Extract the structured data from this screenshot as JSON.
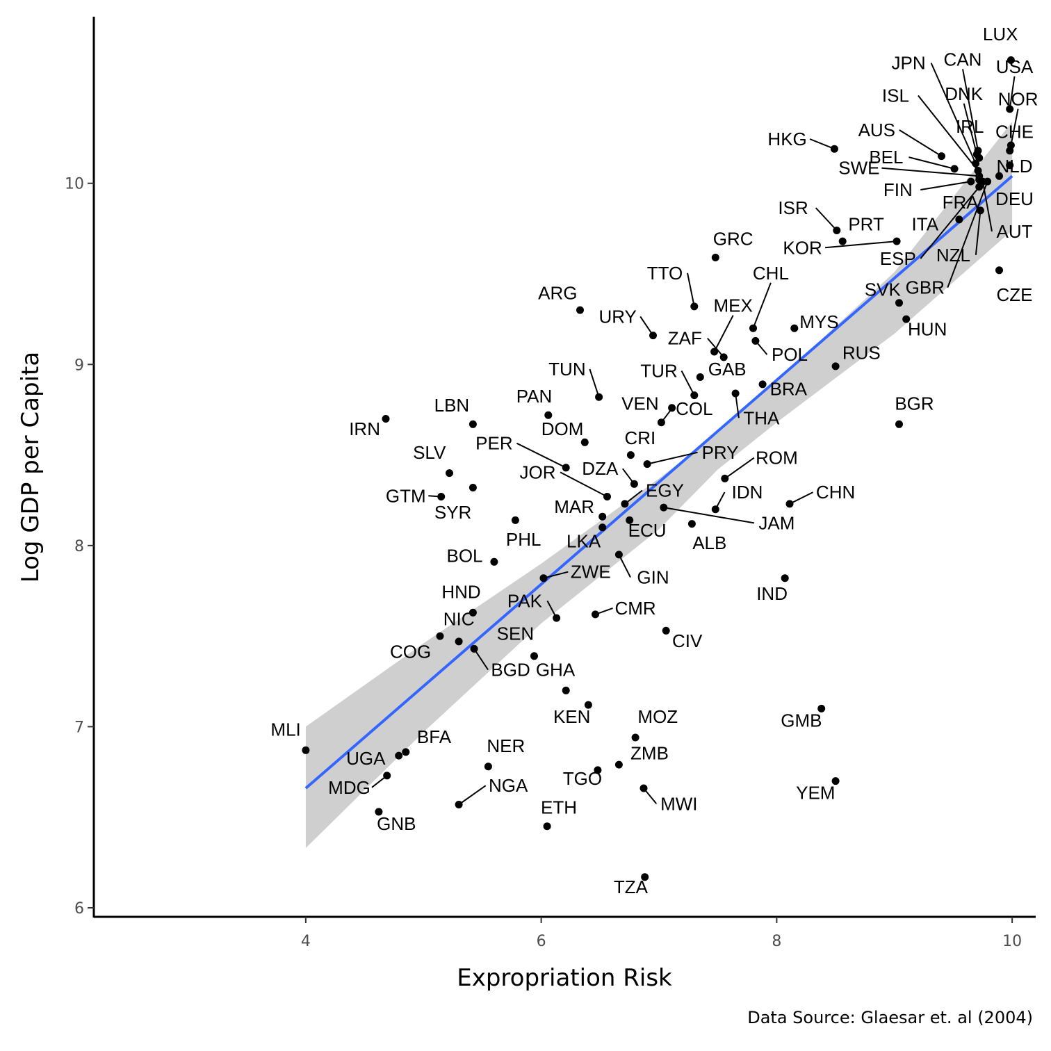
{
  "chart_data": {
    "type": "scatter",
    "xlabel": "Expropriation Risk",
    "ylabel": "Log GDP per Capita",
    "caption": "Data Source: Glaesar et. al (2004)",
    "xlim": [
      2.2,
      10.2
    ],
    "ylim": [
      5.95,
      10.92
    ],
    "xticks": [
      4,
      6,
      8,
      10
    ],
    "yticks": [
      6,
      7,
      8,
      9,
      10
    ],
    "grid": false,
    "colors": {
      "points": "#000000",
      "fit_line": "#3366ff",
      "ribbon": "#cccccc"
    },
    "fit": {
      "method": "linear",
      "x0": 4.0,
      "y0": 6.66,
      "x1": 10.0,
      "y1": 10.04,
      "band": [
        [
          4.0,
          6.33,
          7.0
        ],
        [
          5.0,
          6.97,
          7.46
        ],
        [
          6.0,
          7.57,
          7.9
        ],
        [
          7.0,
          8.09,
          8.37
        ],
        [
          7.5,
          8.42,
          8.62
        ],
        [
          8.0,
          8.68,
          8.91
        ],
        [
          9.0,
          9.17,
          9.51
        ],
        [
          10.0,
          9.74,
          10.34
        ]
      ]
    },
    "points": [
      {
        "code": "LUX",
        "x": 9.99,
        "y": 10.68,
        "lx": 9.9,
        "ly": 10.79
      },
      {
        "code": "USA",
        "x": 9.98,
        "y": 10.41,
        "lx": 10.02,
        "ly": 10.61
      },
      {
        "code": "NOR",
        "x": 9.99,
        "y": 10.21,
        "lx": 10.05,
        "ly": 10.43
      },
      {
        "code": "CHE",
        "x": 9.98,
        "y": 10.18,
        "lx": 10.02,
        "ly": 10.25
      },
      {
        "code": "NLD",
        "x": 9.98,
        "y": 10.1,
        "lx": 10.02,
        "ly": 10.06
      },
      {
        "code": "DEU",
        "x": 9.89,
        "y": 10.04,
        "lx": 10.02,
        "ly": 9.88
      },
      {
        "code": "AUT",
        "x": 9.75,
        "y": 10.01,
        "lx": 10.02,
        "ly": 9.7
      },
      {
        "code": "CAN",
        "x": 9.71,
        "y": 10.18,
        "lx": 9.58,
        "ly": 10.65
      },
      {
        "code": "JPN",
        "x": 9.69,
        "y": 10.11,
        "lx": 9.12,
        "ly": 10.63
      },
      {
        "code": "DNK",
        "x": 9.7,
        "y": 10.16,
        "lx": 9.59,
        "ly": 10.46
      },
      {
        "code": "ISL",
        "x": 9.71,
        "y": 10.07,
        "lx": 9.01,
        "ly": 10.45
      },
      {
        "code": "IRL",
        "x": 9.72,
        "y": 10.14,
        "lx": 9.64,
        "ly": 10.28
      },
      {
        "code": "AUS",
        "x": 9.4,
        "y": 10.15,
        "lx": 8.85,
        "ly": 10.26
      },
      {
        "code": "HKG",
        "x": 8.49,
        "y": 10.19,
        "lx": 8.09,
        "ly": 10.21
      },
      {
        "code": "BEL",
        "x": 9.51,
        "y": 10.08,
        "lx": 8.93,
        "ly": 10.11
      },
      {
        "code": "SWE",
        "x": 9.72,
        "y": 10.04,
        "lx": 8.7,
        "ly": 10.05
      },
      {
        "code": "FIN",
        "x": 9.65,
        "y": 10.01,
        "lx": 9.03,
        "ly": 9.93
      },
      {
        "code": "FRA",
        "x": 9.72,
        "y": 10.02,
        "lx": 9.56,
        "ly": 9.86
      },
      {
        "code": "ITA",
        "x": 9.55,
        "y": 9.8,
        "lx": 9.26,
        "ly": 9.74
      },
      {
        "code": "ESP",
        "x": 9.72,
        "y": 9.98,
        "lx": 9.03,
        "ly": 9.55
      },
      {
        "code": "NZL",
        "x": 9.73,
        "y": 9.85,
        "lx": 9.5,
        "ly": 9.57
      },
      {
        "code": "GBR",
        "x": 9.79,
        "y": 10.01,
        "lx": 9.26,
        "ly": 9.39
      },
      {
        "code": "CZE",
        "x": 9.89,
        "y": 9.52,
        "lx": 10.02,
        "ly": 9.35
      },
      {
        "code": "ISR",
        "x": 8.51,
        "y": 9.74,
        "lx": 8.14,
        "ly": 9.83
      },
      {
        "code": "PRT",
        "x": 8.56,
        "y": 9.68,
        "lx": 8.76,
        "ly": 9.74
      },
      {
        "code": "KOR",
        "x": 9.02,
        "y": 9.68,
        "lx": 8.22,
        "ly": 9.61
      },
      {
        "code": "GRC",
        "x": 7.48,
        "y": 9.59,
        "lx": 7.63,
        "ly": 9.66
      },
      {
        "code": "SVK",
        "x": 9.04,
        "y": 9.34,
        "lx": 8.9,
        "ly": 9.38
      },
      {
        "code": "HUN",
        "x": 9.1,
        "y": 9.25,
        "lx": 9.28,
        "ly": 9.16
      },
      {
        "code": "ARG",
        "x": 6.33,
        "y": 9.3,
        "lx": 6.14,
        "ly": 9.36
      },
      {
        "code": "TTO",
        "x": 7.3,
        "y": 9.32,
        "lx": 7.05,
        "ly": 9.47
      },
      {
        "code": "CHL",
        "x": 7.8,
        "y": 9.2,
        "lx": 7.95,
        "ly": 9.47
      },
      {
        "code": "MEX",
        "x": 7.47,
        "y": 9.07,
        "lx": 7.63,
        "ly": 9.29
      },
      {
        "code": "URY",
        "x": 6.95,
        "y": 9.16,
        "lx": 6.65,
        "ly": 9.23
      },
      {
        "code": "MYS",
        "x": 8.15,
        "y": 9.2,
        "lx": 8.36,
        "ly": 9.2
      },
      {
        "code": "ZAF",
        "x": 7.55,
        "y": 9.04,
        "lx": 7.22,
        "ly": 9.11
      },
      {
        "code": "POL",
        "x": 7.82,
        "y": 9.13,
        "lx": 8.11,
        "ly": 9.02
      },
      {
        "code": "RUS",
        "x": 8.5,
        "y": 8.99,
        "lx": 8.72,
        "ly": 9.03
      },
      {
        "code": "GAB",
        "x": 7.35,
        "y": 8.93,
        "lx": 7.58,
        "ly": 8.94
      },
      {
        "code": "TUR",
        "x": 7.3,
        "y": 8.83,
        "lx": 7.0,
        "ly": 8.93
      },
      {
        "code": "TUN",
        "x": 6.49,
        "y": 8.82,
        "lx": 6.22,
        "ly": 8.94
      },
      {
        "code": "BRA",
        "x": 7.88,
        "y": 8.89,
        "lx": 8.1,
        "ly": 8.83
      },
      {
        "code": "VEN",
        "x": 7.11,
        "y": 8.76,
        "lx": 6.84,
        "ly": 8.75
      },
      {
        "code": "BGR",
        "x": 9.04,
        "y": 8.67,
        "lx": 9.17,
        "ly": 8.75
      },
      {
        "code": "THA",
        "x": 7.65,
        "y": 8.84,
        "lx": 7.87,
        "ly": 8.67
      },
      {
        "code": "PAN",
        "x": 6.06,
        "y": 8.72,
        "lx": 5.94,
        "ly": 8.79
      },
      {
        "code": "LBN",
        "x": 5.42,
        "y": 8.67,
        "lx": 5.24,
        "ly": 8.74
      },
      {
        "code": "IRN",
        "x": 4.68,
        "y": 8.7,
        "lx": 4.5,
        "ly": 8.61
      },
      {
        "code": "COL",
        "x": 7.02,
        "y": 8.68,
        "lx": 7.3,
        "ly": 8.72
      },
      {
        "code": "DOM",
        "x": 6.37,
        "y": 8.57,
        "lx": 6.18,
        "ly": 8.61
      },
      {
        "code": "CRI",
        "x": 6.76,
        "y": 8.5,
        "lx": 6.84,
        "ly": 8.56
      },
      {
        "code": "PER",
        "x": 6.21,
        "y": 8.43,
        "lx": 5.6,
        "ly": 8.53
      },
      {
        "code": "PRY",
        "x": 6.9,
        "y": 8.45,
        "lx": 7.52,
        "ly": 8.48
      },
      {
        "code": "SLV",
        "x": 5.22,
        "y": 8.4,
        "lx": 5.05,
        "ly": 8.48
      },
      {
        "code": "ROM",
        "x": 7.56,
        "y": 8.37,
        "lx": 8.0,
        "ly": 8.45
      },
      {
        "code": "DZA",
        "x": 6.79,
        "y": 8.34,
        "lx": 6.5,
        "ly": 8.39
      },
      {
        "code": "JOR",
        "x": 6.56,
        "y": 8.27,
        "lx": 5.97,
        "ly": 8.37
      },
      {
        "code": "SYR",
        "x": 5.42,
        "y": 8.32,
        "lx": 5.25,
        "ly": 8.15
      },
      {
        "code": "GTM",
        "x": 5.15,
        "y": 8.27,
        "lx": 4.85,
        "ly": 8.24
      },
      {
        "code": "EGY",
        "x": 6.71,
        "y": 8.23,
        "lx": 7.05,
        "ly": 8.27
      },
      {
        "code": "IDN",
        "x": 7.48,
        "y": 8.2,
        "lx": 7.75,
        "ly": 8.26
      },
      {
        "code": "CHN",
        "x": 8.11,
        "y": 8.23,
        "lx": 8.5,
        "ly": 8.26
      },
      {
        "code": "MAR",
        "x": 6.52,
        "y": 8.16,
        "lx": 6.28,
        "ly": 8.18
      },
      {
        "code": "JAM",
        "x": 7.04,
        "y": 8.21,
        "lx": 8.0,
        "ly": 8.09
      },
      {
        "code": "ALB",
        "x": 7.28,
        "y": 8.12,
        "lx": 7.43,
        "ly": 7.98
      },
      {
        "code": "ECU",
        "x": 6.75,
        "y": 8.14,
        "lx": 6.9,
        "ly": 8.05
      },
      {
        "code": "PHL",
        "x": 5.78,
        "y": 8.14,
        "lx": 5.85,
        "ly": 8.0
      },
      {
        "code": "LKA",
        "x": 6.52,
        "y": 8.1,
        "lx": 6.36,
        "ly": 7.99
      },
      {
        "code": "BOL",
        "x": 5.6,
        "y": 7.91,
        "lx": 5.35,
        "ly": 7.91
      },
      {
        "code": "GIN",
        "x": 6.66,
        "y": 7.95,
        "lx": 6.95,
        "ly": 7.79
      },
      {
        "code": "ZWE",
        "x": 6.02,
        "y": 7.82,
        "lx": 6.42,
        "ly": 7.82
      },
      {
        "code": "IND",
        "x": 8.07,
        "y": 7.82,
        "lx": 7.96,
        "ly": 7.7
      },
      {
        "code": "HND",
        "x": 5.42,
        "y": 7.63,
        "lx": 5.32,
        "ly": 7.71
      },
      {
        "code": "PAK",
        "x": 6.13,
        "y": 7.6,
        "lx": 5.86,
        "ly": 7.66
      },
      {
        "code": "CMR",
        "x": 6.46,
        "y": 7.62,
        "lx": 6.8,
        "ly": 7.62
      },
      {
        "code": "NIC",
        "x": 5.3,
        "y": 7.47,
        "lx": 5.3,
        "ly": 7.56
      },
      {
        "code": "COG",
        "x": 5.14,
        "y": 7.5,
        "lx": 4.89,
        "ly": 7.38
      },
      {
        "code": "CIV",
        "x": 7.06,
        "y": 7.53,
        "lx": 7.24,
        "ly": 7.44
      },
      {
        "code": "SEN",
        "x": 5.94,
        "y": 7.39,
        "lx": 5.78,
        "ly": 7.48
      },
      {
        "code": "BGD",
        "x": 5.43,
        "y": 7.43,
        "lx": 5.74,
        "ly": 7.28
      },
      {
        "code": "GHA",
        "x": 6.21,
        "y": 7.2,
        "lx": 6.12,
        "ly": 7.28
      },
      {
        "code": "KEN",
        "x": 6.4,
        "y": 7.12,
        "lx": 6.26,
        "ly": 7.02
      },
      {
        "code": "GMB",
        "x": 8.38,
        "y": 7.1,
        "lx": 8.21,
        "ly": 7.0
      },
      {
        "code": "MOZ",
        "x": 6.8,
        "y": 6.94,
        "lx": 6.99,
        "ly": 7.02
      },
      {
        "code": "MLI",
        "x": 4.0,
        "y": 6.87,
        "lx": 3.83,
        "ly": 6.95
      },
      {
        "code": "BFA",
        "x": 4.85,
        "y": 6.86,
        "lx": 5.09,
        "ly": 6.91
      },
      {
        "code": "UGA",
        "x": 4.79,
        "y": 6.84,
        "lx": 4.51,
        "ly": 6.79
      },
      {
        "code": "NER",
        "x": 5.55,
        "y": 6.78,
        "lx": 5.7,
        "ly": 6.86
      },
      {
        "code": "ZMB",
        "x": 6.66,
        "y": 6.79,
        "lx": 6.92,
        "ly": 6.82
      },
      {
        "code": "TGO",
        "x": 6.48,
        "y": 6.76,
        "lx": 6.35,
        "ly": 6.68
      },
      {
        "code": "YEM",
        "x": 8.5,
        "y": 6.7,
        "lx": 8.33,
        "ly": 6.6
      },
      {
        "code": "MDG",
        "x": 4.69,
        "y": 6.73,
        "lx": 4.37,
        "ly": 6.63
      },
      {
        "code": "NGA",
        "x": 5.3,
        "y": 6.57,
        "lx": 5.72,
        "ly": 6.64
      },
      {
        "code": "MWI",
        "x": 6.87,
        "y": 6.66,
        "lx": 7.17,
        "ly": 6.54
      },
      {
        "code": "ETH",
        "x": 6.05,
        "y": 6.45,
        "lx": 6.15,
        "ly": 6.52
      },
      {
        "code": "GNB",
        "x": 4.62,
        "y": 6.53,
        "lx": 4.77,
        "ly": 6.43
      },
      {
        "code": "TZA",
        "x": 6.88,
        "y": 6.17,
        "lx": 6.76,
        "ly": 6.08
      }
    ]
  }
}
